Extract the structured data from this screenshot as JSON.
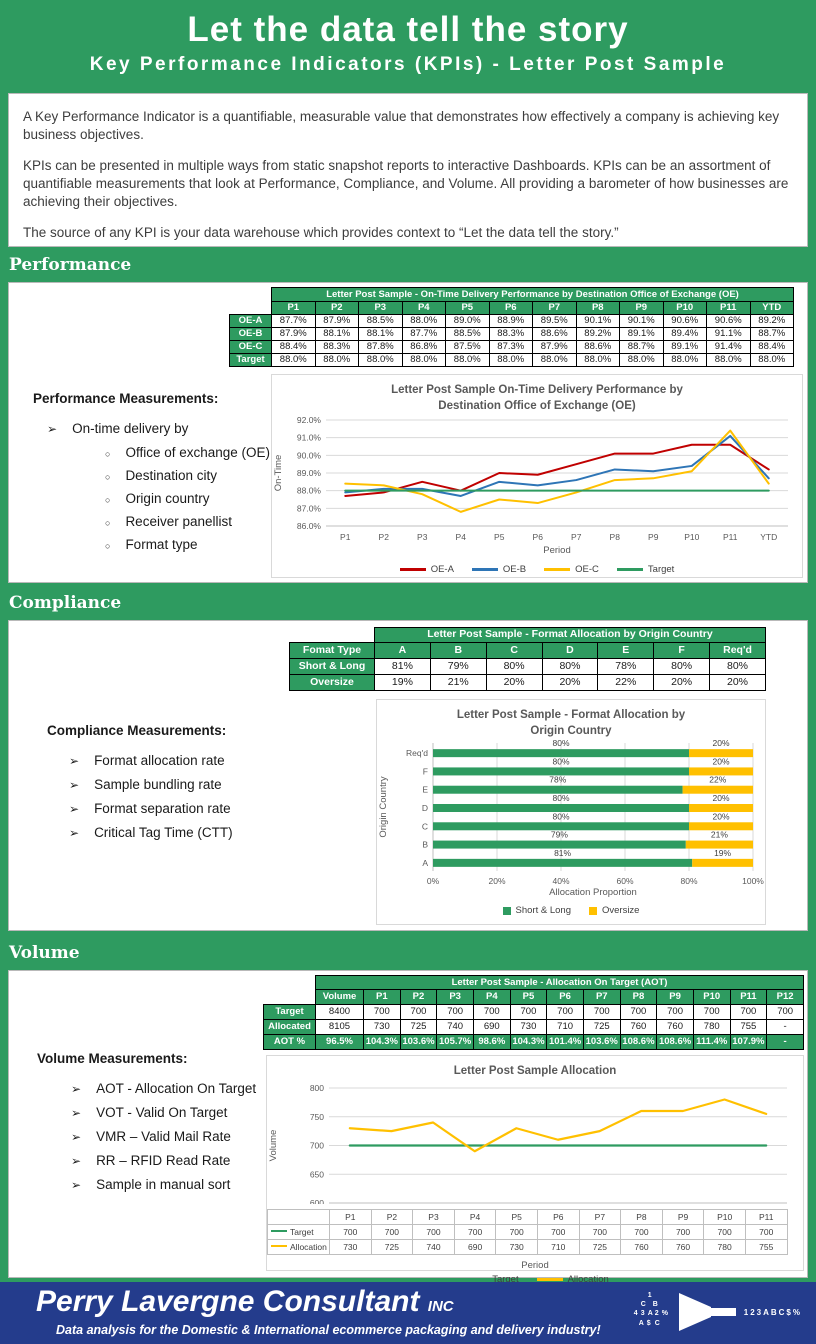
{
  "theme": {
    "green": "#2E9B60",
    "navy": "#243C8C",
    "red": "#C00000",
    "blue": "#2E75B6",
    "yellow": "#FFC000",
    "grid": "#D9D9D9",
    "chart_text": "#595959"
  },
  "header": {
    "title": "Let the data tell the story",
    "subtitle": "Key Performance Indicators (KPIs) - Letter Post Sample"
  },
  "intro": {
    "paragraphs": [
      "A Key Performance Indicator is a quantifiable, measurable value that demonstrates how effectively a company is achieving key business objectives.",
      "KPIs can be presented in multiple ways from static snapshot reports to interactive Dashboards. KPIs can be an assortment of quantifiable measurements that look at Performance, Compliance, and Volume. All providing a barometer of how businesses are achieving their objectives.",
      "The source of any KPI is your data warehouse which provides context to “Let the data tell the story.”"
    ]
  },
  "sections": {
    "performance": {
      "heading": "Performance",
      "measurements_title": "Performance Measurements:",
      "bullets": [
        {
          "label": "On-time delivery by",
          "sub": [
            "Office of exchange (OE)",
            "Destination city",
            "Origin country",
            "Receiver panellist",
            "Format type"
          ]
        }
      ],
      "table": {
        "title": "Letter Post Sample - On-Time Delivery Performance by Destination Office of Exchange (OE)",
        "col_headers": [
          "P1",
          "P2",
          "P3",
          "P4",
          "P5",
          "P6",
          "P7",
          "P8",
          "P9",
          "P10",
          "P11",
          "YTD"
        ],
        "rows": [
          {
            "label": "OE-A",
            "values": [
              "87.7%",
              "87.9%",
              "88.5%",
              "88.0%",
              "89.0%",
              "88.9%",
              "89.5%",
              "90.1%",
              "90.1%",
              "90.6%",
              "90.6%",
              "89.2%"
            ]
          },
          {
            "label": "OE-B",
            "values": [
              "87.9%",
              "88.1%",
              "88.1%",
              "87.7%",
              "88.5%",
              "88.3%",
              "88.6%",
              "89.2%",
              "89.1%",
              "89.4%",
              "91.1%",
              "88.7%"
            ]
          },
          {
            "label": "OE-C",
            "values": [
              "88.4%",
              "88.3%",
              "87.8%",
              "86.8%",
              "87.5%",
              "87.3%",
              "87.9%",
              "88.6%",
              "88.7%",
              "89.1%",
              "91.4%",
              "88.4%"
            ]
          },
          {
            "label": "Target",
            "values": [
              "88.0%",
              "88.0%",
              "88.0%",
              "88.0%",
              "88.0%",
              "88.0%",
              "88.0%",
              "88.0%",
              "88.0%",
              "88.0%",
              "88.0%",
              "88.0%"
            ]
          }
        ]
      }
    },
    "compliance": {
      "heading": "Compliance",
      "measurements_title": "Compliance Measurements:",
      "bullets": [
        {
          "label": "Format allocation rate"
        },
        {
          "label": "Sample bundling rate"
        },
        {
          "label": "Format separation rate"
        },
        {
          "label": "Critical Tag Time (CTT)"
        }
      ],
      "table": {
        "title": "Letter Post Sample - Format Allocation  by Origin Country",
        "label_header": "Fomat Type",
        "col_headers": [
          "A",
          "B",
          "C",
          "D",
          "E",
          "F",
          "Req'd"
        ],
        "rows": [
          {
            "label": "Short & Long",
            "values": [
              "81%",
              "79%",
              "80%",
              "80%",
              "78%",
              "80%",
              "80%"
            ]
          },
          {
            "label": "Oversize",
            "values": [
              "19%",
              "21%",
              "20%",
              "20%",
              "22%",
              "20%",
              "20%"
            ]
          }
        ]
      }
    },
    "volume": {
      "heading": "Volume",
      "measurements_title": "Volume Measurements:",
      "bullets": [
        {
          "label": "AOT - Allocation On Target"
        },
        {
          "label": "VOT - Valid On Target"
        },
        {
          "label": "VMR – Valid Mail Rate"
        },
        {
          "label": "RR – RFID Read Rate"
        },
        {
          "label": "Sample in manual sort"
        }
      ],
      "table": {
        "title": "Letter Post Sample - Allocation On Target (AOT)",
        "col_headers": [
          "Volume",
          "P1",
          "P2",
          "P3",
          "P4",
          "P5",
          "P6",
          "P7",
          "P8",
          "P9",
          "P10",
          "P11",
          "P12"
        ],
        "rows": [
          {
            "label": "Target",
            "values": [
              "8400",
              "700",
              "700",
              "700",
              "700",
              "700",
              "700",
              "700",
              "700",
              "700",
              "700",
              "700",
              "700"
            ]
          },
          {
            "label": "Allocated",
            "values": [
              "8105",
              "730",
              "725",
              "740",
              "690",
              "730",
              "710",
              "725",
              "760",
              "760",
              "780",
              "755",
              "-"
            ]
          },
          {
            "label": "AOT %",
            "green": true,
            "values": [
              "96.5%",
              "104.3%",
              "103.6%",
              "105.7%",
              "98.6%",
              "104.3%",
              "101.4%",
              "103.6%",
              "108.6%",
              "108.6%",
              "111.4%",
              "107.9%",
              "-"
            ]
          }
        ]
      }
    }
  },
  "chart_data": [
    {
      "id": "performance",
      "type": "line",
      "title_lines": [
        "Letter Post Sample On-Time Delivery Performance by",
        "Destination Office of Exchange (OE)"
      ],
      "xlabel": "Period",
      "ylabel": "On-Time",
      "x": [
        "P1",
        "P2",
        "P3",
        "P4",
        "P5",
        "P6",
        "P7",
        "P8",
        "P9",
        "P10",
        "P11",
        "YTD"
      ],
      "ylim": [
        86,
        92
      ],
      "ytick_step": 1,
      "grid": true,
      "legend_position": "bottom",
      "series": [
        {
          "name": "OE-A",
          "color": "#C00000",
          "values": [
            87.7,
            87.9,
            88.5,
            88.0,
            89.0,
            88.9,
            89.5,
            90.1,
            90.1,
            90.6,
            90.6,
            89.2
          ]
        },
        {
          "name": "OE-B",
          "color": "#2E75B6",
          "values": [
            87.9,
            88.1,
            88.1,
            87.7,
            88.5,
            88.3,
            88.6,
            89.2,
            89.1,
            89.4,
            91.1,
            88.7
          ]
        },
        {
          "name": "OE-C",
          "color": "#FFC000",
          "values": [
            88.4,
            88.3,
            87.8,
            86.8,
            87.5,
            87.3,
            87.9,
            88.6,
            88.7,
            89.1,
            91.4,
            88.4
          ]
        },
        {
          "name": "Target",
          "color": "#2E9B60",
          "values": [
            88.0,
            88.0,
            88.0,
            88.0,
            88.0,
            88.0,
            88.0,
            88.0,
            88.0,
            88.0,
            88.0,
            88.0
          ]
        }
      ]
    },
    {
      "id": "compliance",
      "type": "bar",
      "orientation": "horizontal-stacked",
      "title_lines": [
        "Letter Post Sample - Format Allocation by",
        "Origin Country"
      ],
      "xlabel": "Allocation Proportion",
      "ylabel": "Origin Country",
      "categories": [
        "A",
        "B",
        "C",
        "D",
        "E",
        "F",
        "Req'd"
      ],
      "xlim": [
        0,
        100
      ],
      "xtick_step": 20,
      "bar_labels": true,
      "grid": true,
      "legend_position": "bottom",
      "series": [
        {
          "name": "Short & Long",
          "color": "#2E9B60",
          "values": [
            81,
            79,
            80,
            80,
            78,
            80,
            80
          ]
        },
        {
          "name": "Oversize",
          "color": "#FFC000",
          "values": [
            19,
            21,
            20,
            20,
            22,
            20,
            20
          ]
        }
      ]
    },
    {
      "id": "volume",
      "type": "line",
      "title_lines": [
        "Letter Post Sample Allocation"
      ],
      "xlabel": "Period",
      "ylabel": "Volume",
      "x": [
        "P1",
        "P2",
        "P3",
        "P4",
        "P5",
        "P6",
        "P7",
        "P8",
        "P9",
        "P10",
        "P11"
      ],
      "ylim": [
        600,
        800
      ],
      "ytick_step": 50,
      "grid": true,
      "data_table": true,
      "legend_position": "bottom",
      "series": [
        {
          "name": "Target",
          "color": "#2E9B60",
          "values": [
            700,
            700,
            700,
            700,
            700,
            700,
            700,
            700,
            700,
            700,
            700
          ]
        },
        {
          "name": "Allocation",
          "color": "#FFC000",
          "values": [
            730,
            725,
            740,
            690,
            730,
            710,
            725,
            760,
            760,
            780,
            755
          ]
        }
      ]
    }
  ],
  "footer": {
    "company": "Perry Lavergne Consultant",
    "suffix": "INC",
    "tagline": "Data analysis for the Domestic & International ecommerce packaging and delivery industry!",
    "logo_scatter": [
      "1",
      "C",
      "B",
      "4",
      "3",
      "A",
      "2",
      "%",
      "A",
      "$",
      "C"
    ],
    "logo_sorted": "123ABC$%"
  }
}
